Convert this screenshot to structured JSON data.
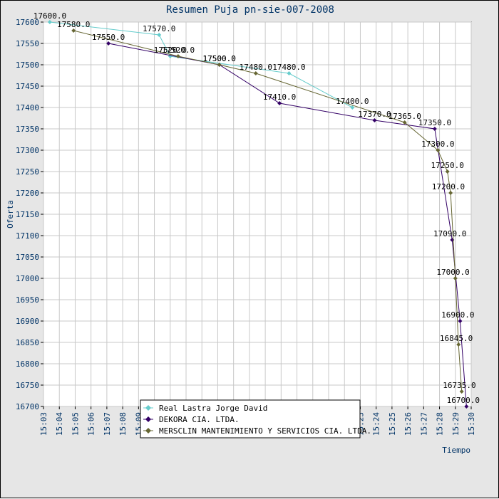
{
  "chart_data": {
    "type": "line",
    "title": "Resumen Puja pn-sie-007-2008",
    "xlabel": "Tiempo",
    "ylabel": "Oferta",
    "ylim": [
      16700,
      17600
    ],
    "y_ticks": [
      "16700",
      "16750",
      "16800",
      "16850",
      "16900",
      "16950",
      "17000",
      "17050",
      "17100",
      "17150",
      "17200",
      "17250",
      "17300",
      "17350",
      "17400",
      "17450",
      "17500",
      "17550",
      "17600"
    ],
    "x_ticks": [
      "15:03",
      "15:04",
      "15:05",
      "15:06",
      "15:07",
      "15:08",
      "15:09",
      "15:10",
      "15:11",
      "15:12",
      "15:13",
      "15:14",
      "15:15",
      "15:16",
      "15:17",
      "15:18",
      "15:19",
      "15:20",
      "15:21",
      "15:22",
      "15:23",
      "15:24",
      "15:25",
      "15:26",
      "15:27",
      "15:28",
      "15:29",
      "15:30"
    ],
    "grid": true,
    "legend_placement": "bottom-center",
    "series": [
      {
        "name": "Real Lastra Jorge David",
        "color": "#66cccc",
        "points": [
          {
            "x": "15:03.4",
            "y": 17600,
            "label": "17600.0"
          },
          {
            "x": "15:10.3",
            "y": 17570,
            "label": "17570.0"
          },
          {
            "x": "15:11.0",
            "y": 17520,
            "label": "17520.0"
          },
          {
            "x": "15:18.5",
            "y": 17480,
            "label": "17480.0"
          },
          {
            "x": "15:22.5",
            "y": 17400,
            "label": "17400.0"
          }
        ]
      },
      {
        "name": "DEKORA CIA. LTDA.",
        "color": "#330066",
        "points": [
          {
            "x": "15:07.1",
            "y": 17550,
            "label": "17550.0"
          },
          {
            "x": "15:14.1",
            "y": 17500,
            "label": "17500.0"
          },
          {
            "x": "15:17.9",
            "y": 17410,
            "label": "17410.0"
          },
          {
            "x": "15:23.9",
            "y": 17370,
            "label": "17370.0"
          },
          {
            "x": "15:27.7",
            "y": 17350,
            "label": "17350.0"
          },
          {
            "x": "15:28.8",
            "y": 17090,
            "label": "17090.0"
          },
          {
            "x": "15:29.3",
            "y": 16900,
            "label": "16900.0"
          },
          {
            "x": "15:29.7",
            "y": 16700,
            "label": "16700.0"
          }
        ]
      },
      {
        "name": "MERSCLIN MANTENIMIENTO Y SERVICIOS CIA. LTDA.",
        "color": "#666633",
        "points": [
          {
            "x": "15:04.9",
            "y": 17580,
            "label": "17580.0"
          },
          {
            "x": "15:11.5",
            "y": 17520,
            "label": "17520.0"
          },
          {
            "x": "15:14.1",
            "y": 17500,
            "label": "17500.0"
          },
          {
            "x": "15:16.4",
            "y": 17480,
            "label": "17480.0"
          },
          {
            "x": "15:25.8",
            "y": 17365,
            "label": "17365.0"
          },
          {
            "x": "15:27.9",
            "y": 17300,
            "label": "17300.0"
          },
          {
            "x": "15:28.5",
            "y": 17250,
            "label": "17250.0"
          },
          {
            "x": "15:28.7",
            "y": 17200,
            "label": "17200.0"
          },
          {
            "x": "15:29.0",
            "y": 17000,
            "label": "17000.0"
          },
          {
            "x": "15:29.2",
            "y": 16845,
            "label": "16845.0"
          },
          {
            "x": "15:29.4",
            "y": 16735,
            "label": "16735.0"
          }
        ]
      }
    ]
  }
}
